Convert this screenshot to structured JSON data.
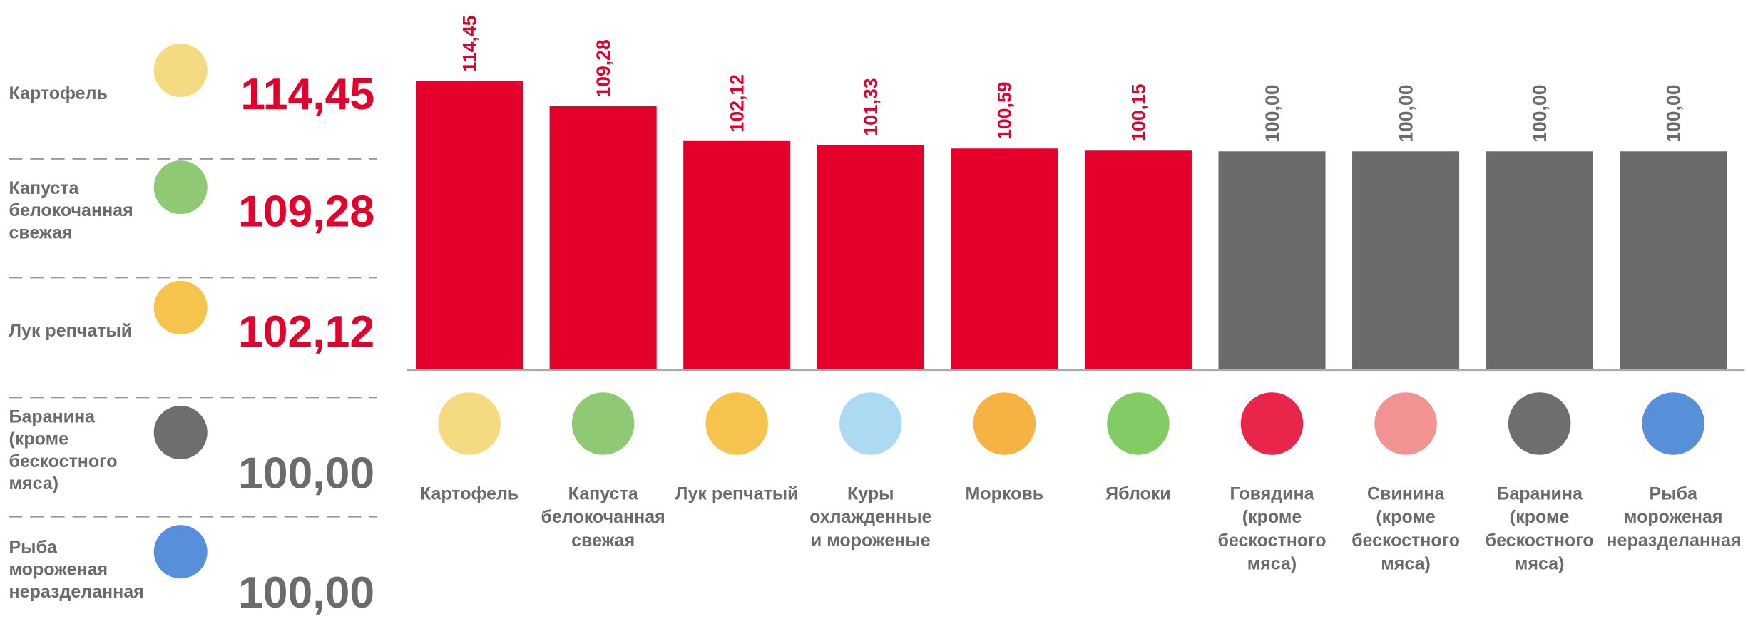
{
  "highlights": [
    {
      "name": "Картофель",
      "value": 114.45,
      "value_label": "114,45",
      "color": "#e4002b"
    },
    {
      "name": "Капуста белокочанная свежая",
      "value": 109.28,
      "value_label": "109,28",
      "color": "#e4002b"
    },
    {
      "name": "Лук репчатый",
      "value": 102.12,
      "value_label": "102,12",
      "color": "#e4002b"
    },
    {
      "name": "Баранина (кроме бескостного мяса)",
      "value": 100.0,
      "value_label": "100,00",
      "color": "#6b6b6b"
    },
    {
      "name": "Рыба мороженая неразделанная",
      "value": 100.0,
      "value_label": "100,00",
      "color": "#6b6b6b"
    }
  ],
  "chart_data": {
    "type": "bar",
    "categories": [
      "Картофель",
      "Капуста белокочанная свежая",
      "Лук репчатый",
      "Куры охлажденные и мороженые",
      "Морковь",
      "Яблоки",
      "Говядина (кроме бескостного мяса)",
      "Свинина (кроме бескостного мяса)",
      "Баранина (кроме бескостного мяса)",
      "Рыба мороженая неразделанная"
    ],
    "values": [
      114.45,
      109.28,
      102.12,
      101.33,
      100.59,
      100.15,
      100.0,
      100.0,
      100.0,
      100.0
    ],
    "value_labels": [
      "114,45",
      "109,28",
      "102,12",
      "101,33",
      "100,59",
      "100,15",
      "100,00",
      "100,00",
      "100,00",
      "100,00"
    ],
    "colors": [
      "#e4002b",
      "#e4002b",
      "#e4002b",
      "#e4002b",
      "#e4002b",
      "#e4002b",
      "#6b6b6b",
      "#6b6b6b",
      "#6b6b6b",
      "#6b6b6b"
    ],
    "ylim": [
      55,
      120
    ]
  }
}
